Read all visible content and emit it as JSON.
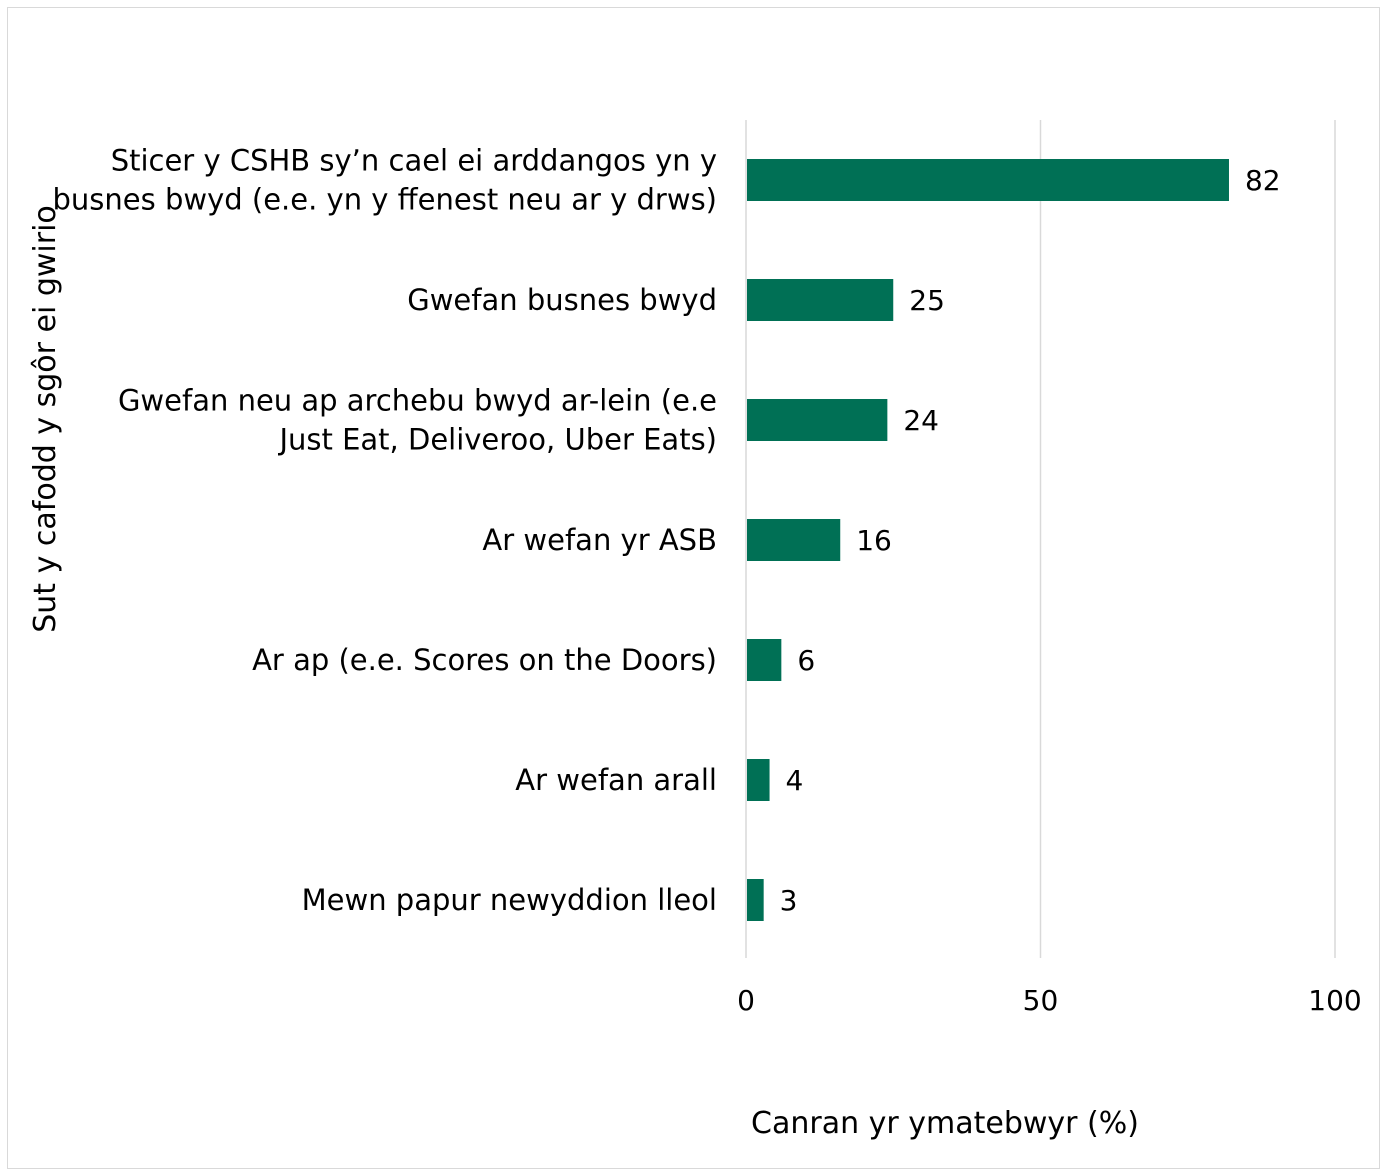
{
  "chart_data": {
    "type": "bar",
    "orientation": "horizontal",
    "title": "",
    "xlabel": "Canran yr ymatebwyr (%)",
    "ylabel": "Sut y cafodd y sgôr ei gwirio",
    "categories": [
      [
        "Sticer y CSHB sy’n cael ei arddangos yn y",
        "busnes bwyd (e.e. yn y ffenest neu ar y drws)"
      ],
      [
        "Gwefan busnes bwyd"
      ],
      [
        "Gwefan neu ap archebu bwyd ar-lein (e.e",
        "Just Eat, Deliveroo, Uber Eats)"
      ],
      [
        "Ar wefan yr ASB"
      ],
      [
        "Ar ap (e.e. Scores on the Doors)"
      ],
      [
        "Ar wefan arall"
      ],
      [
        "Mewn papur newyddion lleol"
      ]
    ],
    "values": [
      82,
      25,
      24,
      16,
      6,
      4,
      3
    ],
    "data_labels": [
      "82",
      "25",
      "24",
      "16",
      "6",
      "4",
      "3"
    ],
    "xlim": [
      0,
      100
    ],
    "xticks": [
      "0",
      "50",
      "100"
    ],
    "grid": true,
    "legend": false,
    "bar_color": "#007055",
    "grid_color": "#d9d9d9"
  }
}
